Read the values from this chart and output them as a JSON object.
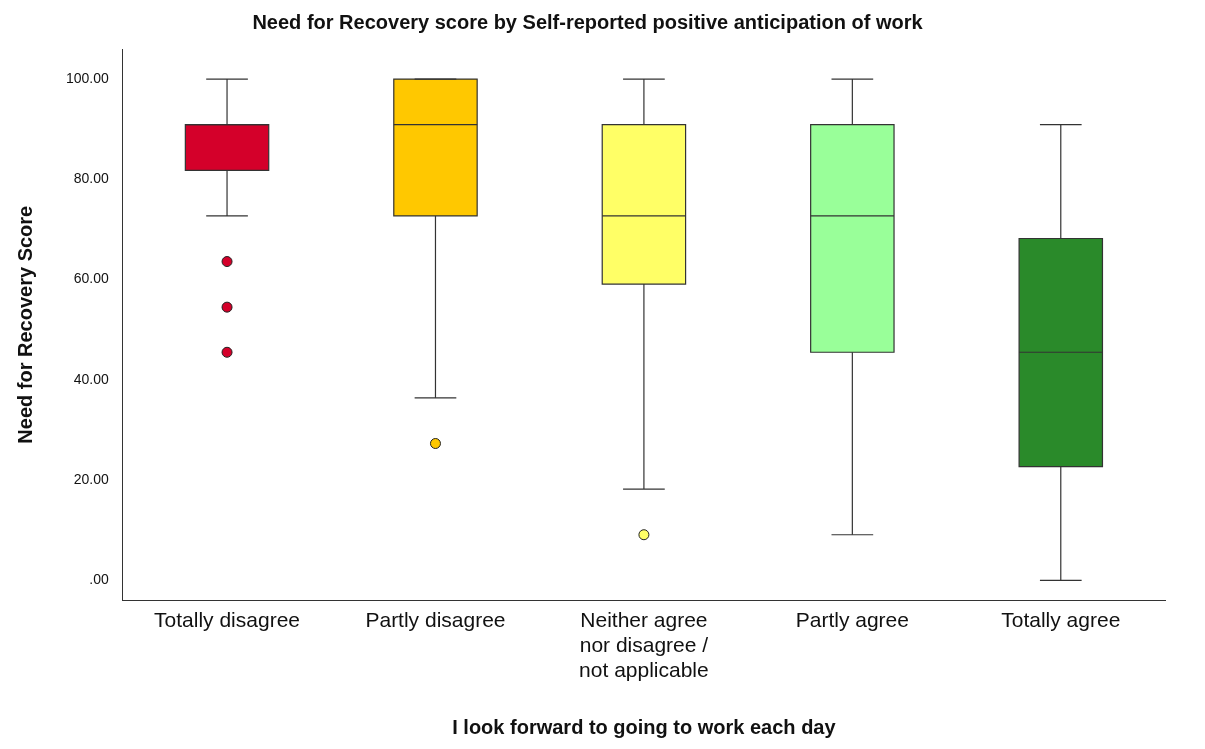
{
  "chart_data": {
    "type": "box",
    "title": "Need for Recovery score by Self-reported positive anticipation of work",
    "xlabel": "I look forward to going to work each day",
    "ylabel": "Need for Recovery Score",
    "categories": [
      "Totally disagree",
      "Partly disagree",
      "Neither agree nor disagree / not applicable",
      "Partly agree",
      "Totally agree"
    ],
    "colors": [
      "#d4002a",
      "#ffc800",
      "#ffff66",
      "#99ff99",
      "#2a8a2a"
    ],
    "boxes": [
      {
        "low": 72.7,
        "q1": 81.8,
        "median": 90.9,
        "q3": 90.9,
        "high": 100,
        "outliers": [
          63.6,
          54.5,
          45.5
        ]
      },
      {
        "low": 36.4,
        "q1": 72.7,
        "median": 90.9,
        "q3": 100,
        "high": 100,
        "outliers": [
          27.3
        ]
      },
      {
        "low": 18.2,
        "q1": 59.1,
        "median": 72.7,
        "q3": 90.9,
        "high": 100,
        "outliers": [
          9.1
        ]
      },
      {
        "low": 9.1,
        "q1": 45.5,
        "median": 72.7,
        "q3": 90.9,
        "high": 100
      },
      {
        "low": 0,
        "q1": 22.7,
        "median": 45.5,
        "q3": 68.2,
        "high": 90.9
      }
    ],
    "ylim": [
      -4,
      106
    ],
    "yticks": [
      {
        "value": 0,
        "label": ".00"
      },
      {
        "value": 20,
        "label": "20.00"
      },
      {
        "value": 40,
        "label": "40.00"
      },
      {
        "value": 60,
        "label": "60.00"
      },
      {
        "value": 80,
        "label": "80.00"
      },
      {
        "value": 100,
        "label": "100.00"
      }
    ],
    "grid": false,
    "legend": false
  }
}
